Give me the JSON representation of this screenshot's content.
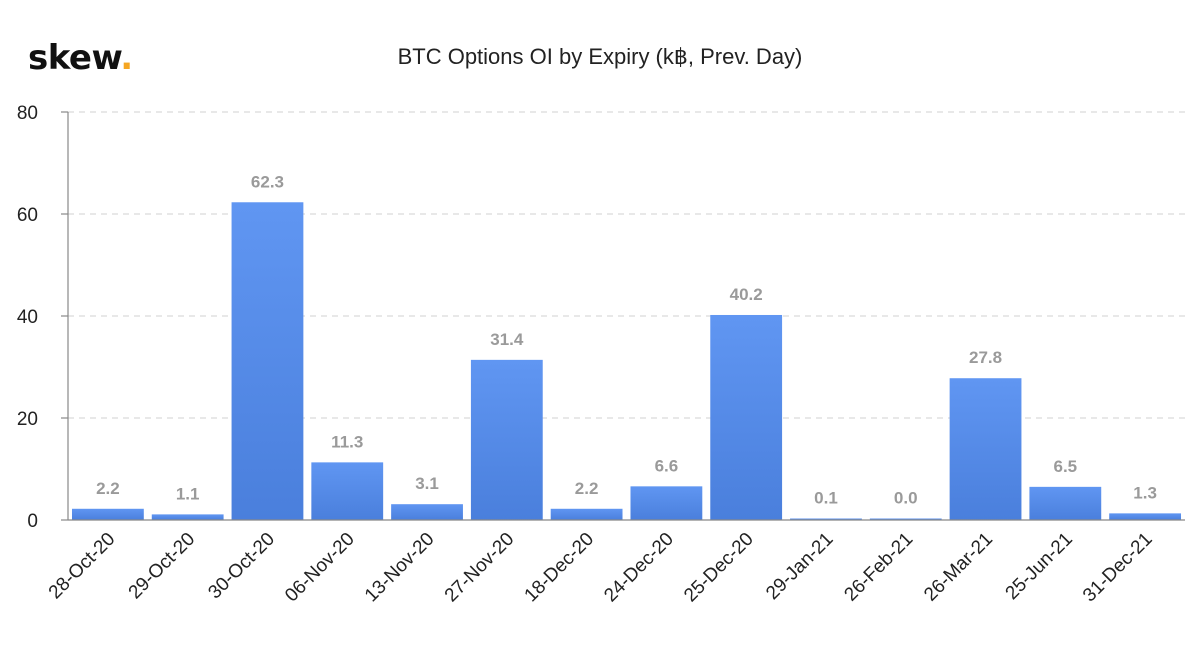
{
  "brand": {
    "name": "skew",
    "dot": "."
  },
  "chart_data": {
    "type": "bar",
    "title": "BTC Options OI by Expiry (k฿, Prev. Day)",
    "xlabel": "",
    "ylabel": "",
    "categories": [
      "28-Oct-20",
      "29-Oct-20",
      "30-Oct-20",
      "06-Nov-20",
      "13-Nov-20",
      "27-Nov-20",
      "18-Dec-20",
      "24-Dec-20",
      "25-Dec-20",
      "29-Jan-21",
      "26-Feb-21",
      "26-Mar-21",
      "25-Jun-21",
      "31-Dec-21"
    ],
    "values": [
      2.2,
      1.1,
      62.3,
      11.3,
      3.1,
      31.4,
      2.2,
      6.6,
      40.2,
      0.1,
      0.0,
      27.8,
      6.5,
      1.3
    ],
    "data_labels": [
      "2.2",
      "1.1",
      "62.3",
      "11.3",
      "3.1",
      "31.4",
      "2.2",
      "6.6",
      "40.2",
      "0.1",
      "0.0",
      "27.8",
      "6.5",
      "1.3"
    ],
    "ylim": [
      0,
      80
    ],
    "yticks": [
      0,
      20,
      40,
      60,
      80
    ],
    "grid": true,
    "legend": "none",
    "colors": {
      "bar_top": "#6096f2",
      "bar_bottom": "#4a7fdc",
      "grid": "#d9d9d9",
      "axis": "#888888",
      "data_label": "#9a9a9a"
    }
  }
}
